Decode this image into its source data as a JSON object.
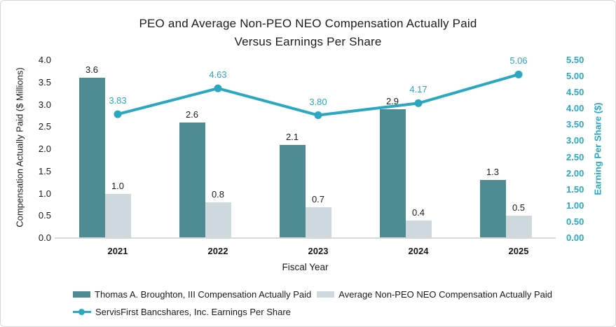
{
  "chart_data": {
    "type": "combo-bar-line",
    "title_line1": "PEO and Average Non-PEO NEO Compensation Actually Paid",
    "title_line2": "Versus Earnings Per Share",
    "categories": [
      "2021",
      "2022",
      "2023",
      "2024",
      "2025"
    ],
    "xlabel": "Fiscal Year",
    "grid": false,
    "legend_position": "bottom",
    "left_axis": {
      "label": "Compensation Actually Paid ($ Millions)",
      "min": 0.0,
      "max": 4.0,
      "step": 0.5,
      "tick_labels": [
        "0.0",
        "0.5",
        "1.0",
        "1.5",
        "2.0",
        "2.5",
        "3.0",
        "3.5",
        "4.0"
      ],
      "color": "#1a1a1a"
    },
    "right_axis": {
      "label": "Earning Per Share ($)",
      "min": 0.0,
      "max": 5.5,
      "step": 0.5,
      "tick_labels": [
        "0.00",
        "0.50",
        "1.00",
        "1.50",
        "2.00",
        "2.50",
        "3.00",
        "3.50",
        "4.00",
        "4.50",
        "5.00",
        "5.50"
      ],
      "color": "#2aa7c1"
    },
    "series": [
      {
        "name": "Thomas A. Broughton, III Compensation Actually Paid",
        "type": "bar",
        "axis": "left",
        "color": "#4e8b92",
        "values": [
          3.6,
          2.6,
          2.1,
          2.9,
          1.3
        ],
        "labels": [
          "3.6",
          "2.6",
          "2.1",
          "2.9",
          "1.3"
        ]
      },
      {
        "name": "Average Non-PEO NEO Compensation Actually Paid",
        "type": "bar",
        "axis": "left",
        "color": "#cdd9dd",
        "values": [
          1.0,
          0.8,
          0.7,
          0.4,
          0.5
        ],
        "labels": [
          "1.0",
          "0.8",
          "0.7",
          "0.4",
          "0.5"
        ]
      },
      {
        "name": "ServisFirst Bancshares, Inc. Earnings Per Share",
        "type": "line",
        "axis": "right",
        "color": "#2aa7c1",
        "values": [
          3.83,
          4.63,
          3.8,
          4.17,
          5.06
        ],
        "labels": [
          "3.83",
          "4.63",
          "3.80",
          "4.17",
          "5.06"
        ]
      }
    ]
  }
}
